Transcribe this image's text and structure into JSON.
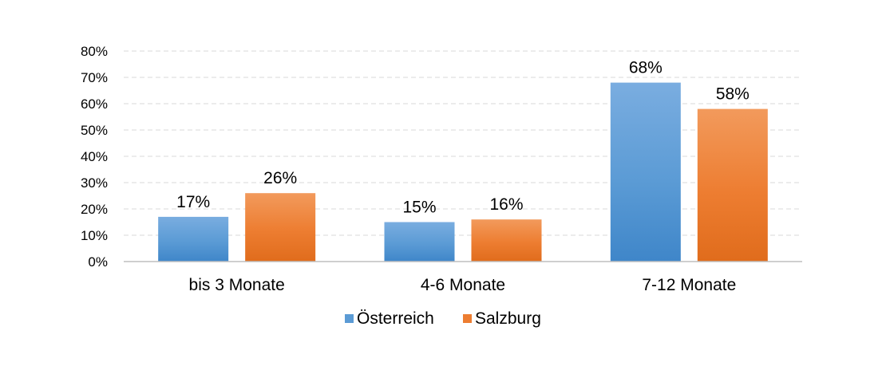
{
  "chart_data": {
    "type": "bar",
    "categories": [
      "bis 3 Monate",
      "4-6 Monate",
      "7-12 Monate"
    ],
    "series": [
      {
        "name": "Österreich",
        "values": [
          17,
          15,
          68
        ],
        "labels": [
          "17%",
          "15%",
          "68%"
        ],
        "color": "#5b9bd5",
        "color_light": "#7aade0",
        "color_dark": "#3f86c9"
      },
      {
        "name": "Salzburg",
        "values": [
          26,
          16,
          58
        ],
        "labels": [
          "26%",
          "16%",
          "58%"
        ],
        "color": "#ed7d31",
        "color_light": "#f29a5c",
        "color_dark": "#e06c1c"
      }
    ],
    "y_ticks": [
      0,
      10,
      20,
      30,
      40,
      50,
      60,
      70,
      80
    ],
    "y_tick_labels": [
      "0%",
      "10%",
      "20%",
      "30%",
      "40%",
      "50%",
      "60%",
      "70%",
      "80%"
    ],
    "ylim": [
      0,
      80
    ],
    "grid": true,
    "legend": "bottom-center"
  }
}
